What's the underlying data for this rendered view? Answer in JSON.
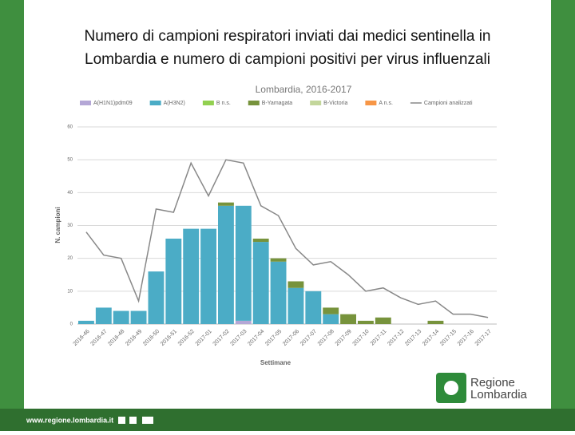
{
  "slide": {
    "title": [
      "Numero di campioni respiratori inviati dai medici sentinella in",
      "Lombardia e numero di campioni positivi per virus influenzali"
    ]
  },
  "chart_data": {
    "type": "bar",
    "stacked": true,
    "title": "Lombardia, 2016-2017",
    "x_label": "Settimane",
    "y_label": "N. campioni",
    "categories": [
      "2016-46",
      "2016-47",
      "2016-48",
      "2016-49",
      "2016-50",
      "2016-51",
      "2016-52",
      "2017-01",
      "2017-02",
      "2017-03",
      "2017-04",
      "2017-05",
      "2017-06",
      "2017-07",
      "2017-08",
      "2017-09",
      "2017-10",
      "2017-11",
      "2017-12",
      "2017-13",
      "2017-14",
      "2017-15",
      "2017-16",
      "2017-17"
    ],
    "series": [
      {
        "name": "A(H1N1)pdm09",
        "color": "#b4a7d6",
        "values": [
          0,
          0,
          0,
          0,
          0,
          0,
          0,
          0,
          0,
          1,
          0,
          0,
          0,
          0,
          0,
          0,
          0,
          0,
          0,
          0,
          0,
          0,
          0,
          0
        ]
      },
      {
        "name": "A(H3N2)",
        "color": "#4bacc6",
        "values": [
          1,
          5,
          4,
          4,
          16,
          26,
          29,
          29,
          36,
          35,
          25,
          19,
          11,
          10,
          3,
          0,
          0,
          0,
          0,
          0,
          0,
          0,
          0,
          0
        ]
      },
      {
        "name": "B n.s.",
        "color": "#92d050",
        "values": [
          0,
          0,
          0,
          0,
          0,
          0,
          0,
          0,
          0,
          0,
          0,
          0,
          0,
          0,
          0,
          0,
          0,
          0,
          0,
          0,
          0,
          0,
          0,
          0
        ]
      },
      {
        "name": "B-Yamagata",
        "color": "#77933c",
        "values": [
          0,
          0,
          0,
          0,
          0,
          0,
          0,
          0,
          1,
          0,
          1,
          1,
          2,
          0,
          2,
          3,
          1,
          2,
          0,
          0,
          1,
          0,
          0,
          0
        ]
      },
      {
        "name": "B-Victoria",
        "color": "#c3d69b",
        "values": [
          0,
          0,
          0,
          0,
          0,
          0,
          0,
          0,
          0,
          0,
          0,
          0,
          0,
          0,
          0,
          0,
          0,
          0,
          0,
          0,
          0,
          0,
          0,
          0
        ]
      },
      {
        "name": "A n.s.",
        "color": "#f79646",
        "values": [
          0,
          0,
          0,
          0,
          0,
          0,
          0,
          0,
          0,
          0,
          0,
          0,
          0,
          0,
          0,
          0,
          0,
          0,
          0,
          0,
          0,
          0,
          0,
          0
        ]
      },
      {
        "name": "Campioni analizzati",
        "type": "line",
        "color": "#888888",
        "values": [
          28,
          21,
          20,
          7,
          35,
          34,
          49,
          39,
          50,
          49,
          36,
          33,
          23,
          18,
          19,
          15,
          10,
          11,
          8,
          6,
          7,
          3,
          3,
          2
        ]
      }
    ],
    "ylim": [
      0,
      60
    ],
    "yticks": [
      0,
      10,
      20,
      30,
      40,
      50,
      60
    ],
    "grid": true
  },
  "footer": {
    "url": "www.regione.lombardia.it"
  },
  "logo": [
    "Regione",
    "Lombardia"
  ]
}
